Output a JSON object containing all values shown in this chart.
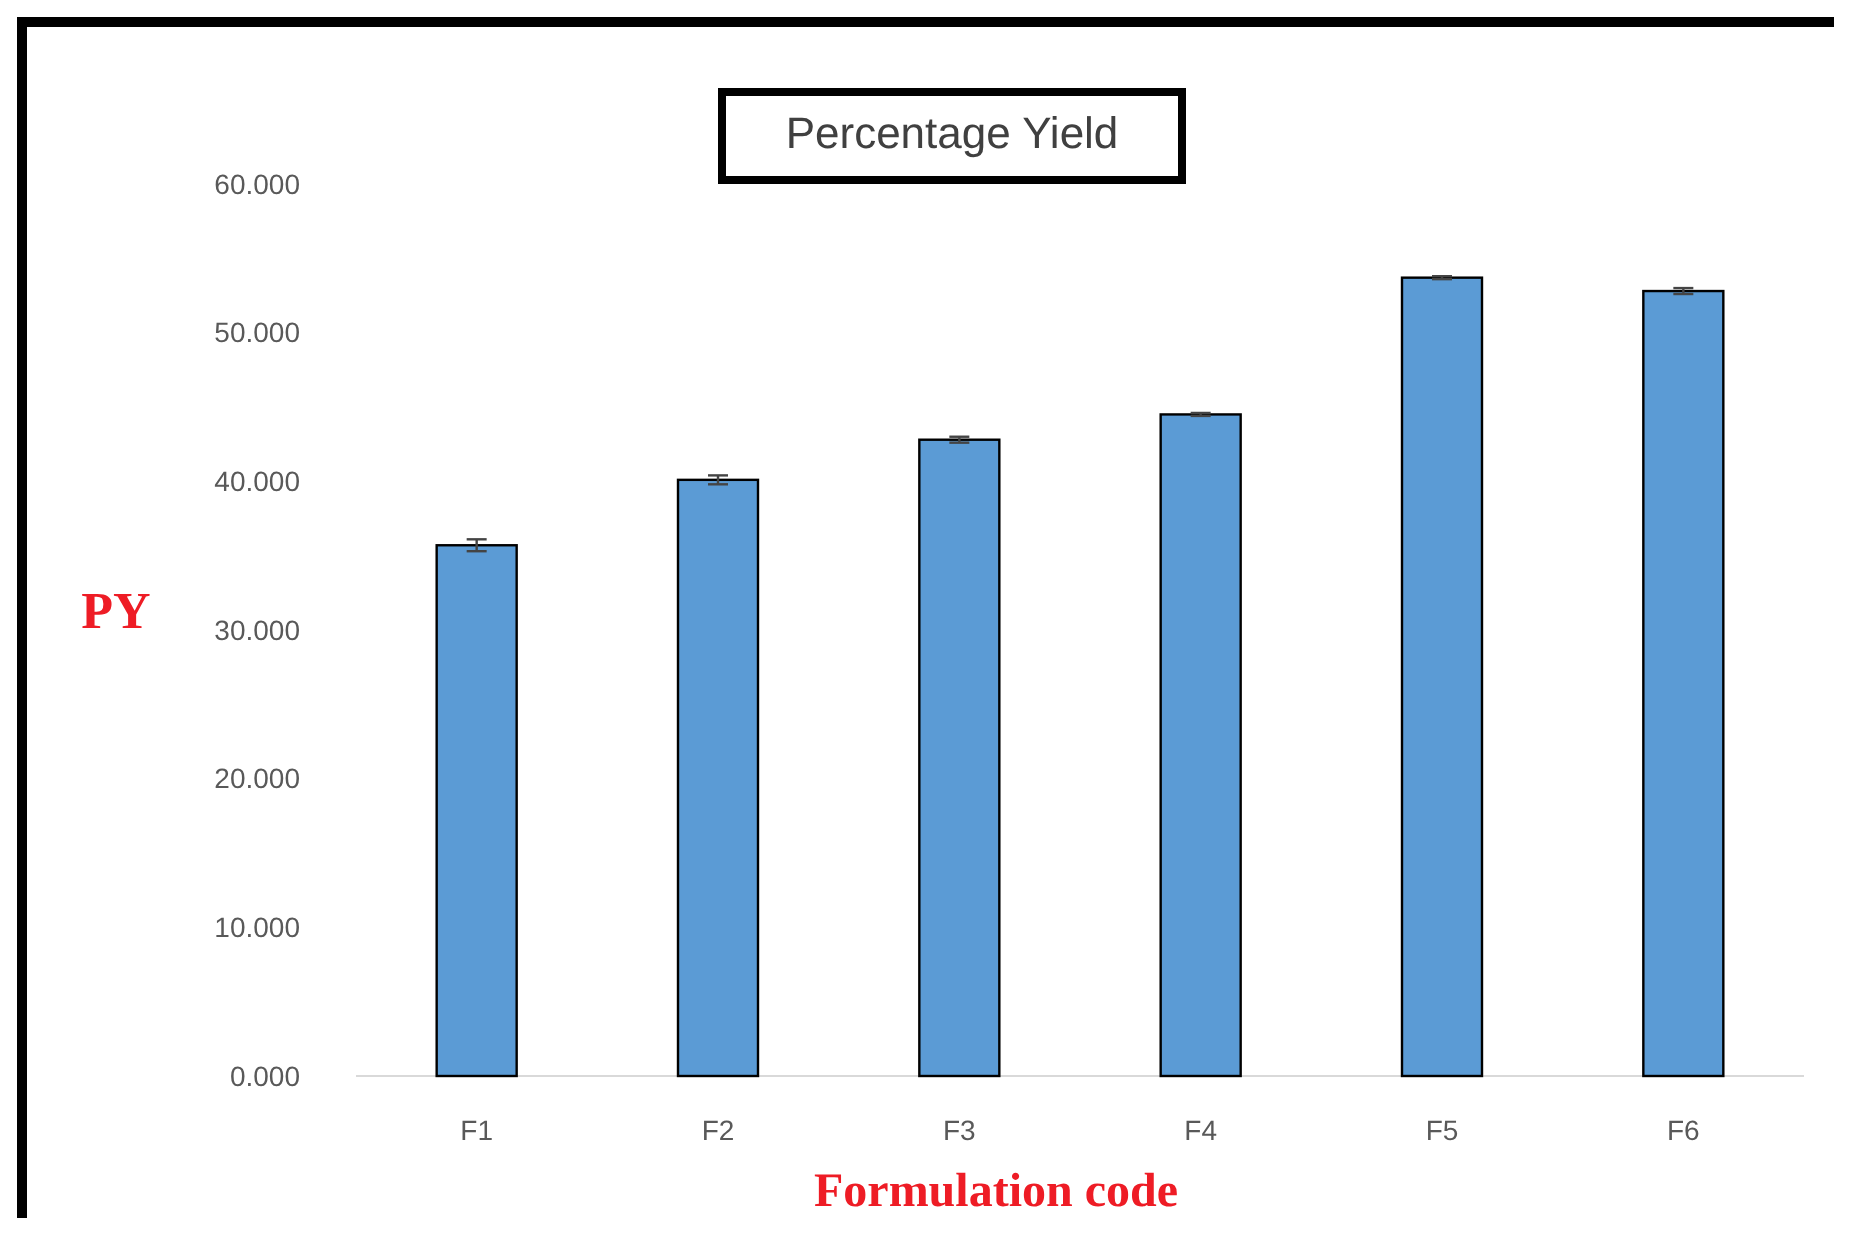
{
  "chart_data": {
    "type": "bar",
    "title": "Percentage Yield",
    "xlabel": "Formulation code",
    "ylabel": "PY",
    "categories": [
      "F1",
      "F2",
      "F3",
      "F4",
      "F5",
      "F6"
    ],
    "values": [
      35.7,
      40.1,
      42.8,
      44.5,
      53.7,
      52.8
    ],
    "errors": [
      0.4,
      0.3,
      0.2,
      0.1,
      0.1,
      0.2
    ],
    "color": "#5b9bd5",
    "ylim": [
      0,
      60
    ],
    "yticks": [
      {
        "value": 0,
        "label": "0.000"
      },
      {
        "value": 10,
        "label": "10.000"
      },
      {
        "value": 20,
        "label": "20.000"
      },
      {
        "value": 30,
        "label": "30.000"
      },
      {
        "value": 40,
        "label": "40.000"
      },
      {
        "value": 50,
        "label": "50.000"
      },
      {
        "value": 60,
        "label": "60.000"
      }
    ],
    "grid": false
  }
}
